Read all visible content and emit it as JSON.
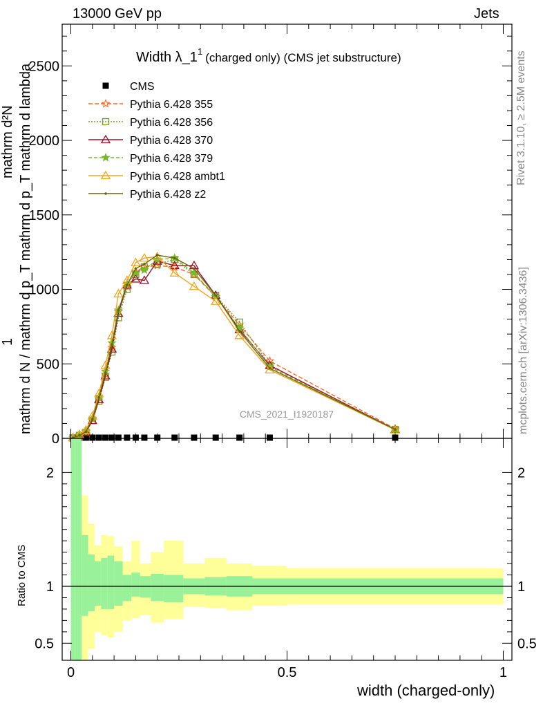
{
  "header": {
    "left": "13000 GeV pp",
    "right": "Jets"
  },
  "side_labels": {
    "rivet": "Rivet 3.1.10, ≥ 2.5M events",
    "mcplots": "mcplots.cern.ch [arXiv:1306.3436]"
  },
  "colors": {
    "p355": "#ff6622",
    "p356": "#7a9a1f",
    "p370": "#9b1128",
    "p379": "#77b82a",
    "ambt1": "#f2a51b",
    "z2": "#666612",
    "band_stat": "#99f299",
    "band_total": "#ffff99"
  },
  "chart_data": [
    {
      "type": "line",
      "title": "Width λ_1¹ (charged only) (CMS jet substructure)",
      "title_main": "Width λ_1",
      "title_sup": "1",
      "title_rest": "(charged only) (CMS jet substructure)",
      "watermark": "CMS_2021_I1920187",
      "ylabel_lines": [
        "1",
        "mathrm d N / mathrm d p_T mathrm d p_T mathrm d lambda",
        "mathrm d²N"
      ],
      "ylim": [
        0,
        2780
      ],
      "xlim": [
        -0.02,
        1.02
      ],
      "y_ticks": [
        0,
        500,
        1000,
        1500,
        2000,
        2500
      ],
      "y_tick_labels": [
        "0",
        "500",
        "1000",
        "1500",
        "2000",
        "2500"
      ],
      "legend_placement": "top-left",
      "x": [
        0.005,
        0.02,
        0.035,
        0.05,
        0.065,
        0.08,
        0.095,
        0.11,
        0.13,
        0.15,
        0.17,
        0.2,
        0.24,
        0.285,
        0.335,
        0.39,
        0.46,
        0.75
      ],
      "series": [
        {
          "name": "CMS",
          "key": "cms",
          "marker": "square",
          "values": [
            0,
            0,
            0,
            0,
            0,
            0,
            0,
            0,
            0,
            0,
            0,
            0,
            0,
            0,
            0,
            0,
            0,
            0
          ]
        },
        {
          "name": "Pythia 6.428 355",
          "key": "p355",
          "marker": "star-open",
          "dash": "6,3",
          "values": [
            4,
            20,
            45,
            130,
            270,
            430,
            610,
            850,
            1020,
            1120,
            1150,
            1160,
            1150,
            1100,
            950,
            760,
            520,
            65
          ]
        },
        {
          "name": "Pythia 6.428 356",
          "key": "p356",
          "marker": "square-open",
          "dash": "2,2",
          "values": [
            4,
            20,
            40,
            120,
            250,
            410,
            580,
            810,
            1000,
            1100,
            1150,
            1170,
            1200,
            1100,
            960,
            780,
            490,
            60
          ]
        },
        {
          "name": "Pythia 6.428 370",
          "key": "p370",
          "marker": "triangle-open",
          "dash": "",
          "values": [
            4,
            18,
            40,
            120,
            260,
            420,
            600,
            840,
            1030,
            1070,
            1060,
            1190,
            1160,
            1160,
            960,
            730,
            490,
            60
          ]
        },
        {
          "name": "Pythia 6.428 379",
          "key": "p379",
          "marker": "star",
          "dash": "5,3",
          "values": [
            4,
            22,
            48,
            135,
            280,
            450,
            640,
            860,
            1040,
            1110,
            1130,
            1200,
            1210,
            1110,
            950,
            740,
            480,
            58
          ]
        },
        {
          "name": "Pythia 6.428 ambt1",
          "key": "ambt1",
          "marker": "triangle-open",
          "dash": "",
          "values": [
            4,
            25,
            55,
            150,
            300,
            490,
            690,
            970,
            1060,
            1180,
            1210,
            1220,
            1110,
            1020,
            920,
            690,
            460,
            57
          ]
        },
        {
          "name": "Pythia 6.428 z2",
          "key": "z2",
          "marker": "dot",
          "dash": "",
          "values": [
            4,
            20,
            45,
            130,
            275,
            440,
            630,
            860,
            1030,
            1140,
            1170,
            1230,
            1210,
            1140,
            960,
            720,
            470,
            60
          ]
        }
      ]
    },
    {
      "type": "area",
      "ylabel": "Ratio to CMS",
      "xlabel": "width (charged-only)",
      "ylim": [
        0.35,
        2.3
      ],
      "xlim": [
        -0.02,
        1.02
      ],
      "y_ticks": [
        0.5,
        1,
        2
      ],
      "y_tick_labels": [
        "0.5",
        "1",
        "2"
      ],
      "x_ticks": [
        0,
        0.5,
        1
      ],
      "x_tick_labels": [
        "0",
        "0.5",
        "1"
      ],
      "bins": [
        {
          "x0": 0.0,
          "x1": 0.01,
          "stat": [
            0.1,
            2.5
          ],
          "total": [
            0.1,
            2.5
          ]
        },
        {
          "x0": 0.01,
          "x1": 0.025,
          "stat": [
            0.1,
            2.5
          ],
          "total": [
            0.1,
            2.5
          ]
        },
        {
          "x0": 0.025,
          "x1": 0.04,
          "stat": [
            0.74,
            1.45
          ],
          "total": [
            0.33,
            1.8
          ]
        },
        {
          "x0": 0.04,
          "x1": 0.055,
          "stat": [
            0.78,
            1.28
          ],
          "total": [
            0.45,
            1.55
          ]
        },
        {
          "x0": 0.055,
          "x1": 0.07,
          "stat": [
            0.83,
            1.22
          ],
          "total": [
            0.6,
            1.36
          ]
        },
        {
          "x0": 0.07,
          "x1": 0.085,
          "stat": [
            0.8,
            1.25
          ],
          "total": [
            0.57,
            1.45
          ]
        },
        {
          "x0": 0.085,
          "x1": 0.1,
          "stat": [
            0.8,
            1.27
          ],
          "total": [
            0.55,
            1.44
          ]
        },
        {
          "x0": 0.1,
          "x1": 0.12,
          "stat": [
            0.83,
            1.22
          ],
          "total": [
            0.6,
            1.35
          ]
        },
        {
          "x0": 0.12,
          "x1": 0.14,
          "stat": [
            0.87,
            1.1
          ],
          "total": [
            0.7,
            1.22
          ]
        },
        {
          "x0": 0.14,
          "x1": 0.16,
          "stat": [
            0.91,
            1.12
          ],
          "total": [
            0.72,
            1.4
          ]
        },
        {
          "x0": 0.16,
          "x1": 0.185,
          "stat": [
            0.9,
            1.09
          ],
          "total": [
            0.75,
            1.2
          ]
        },
        {
          "x0": 0.185,
          "x1": 0.215,
          "stat": [
            0.87,
            1.11
          ],
          "total": [
            0.68,
            1.3
          ]
        },
        {
          "x0": 0.215,
          "x1": 0.26,
          "stat": [
            0.86,
            1.1
          ],
          "total": [
            0.71,
            1.4
          ]
        },
        {
          "x0": 0.26,
          "x1": 0.31,
          "stat": [
            0.93,
            1.07
          ],
          "total": [
            0.82,
            1.2
          ]
        },
        {
          "x0": 0.31,
          "x1": 0.36,
          "stat": [
            0.92,
            1.08
          ],
          "total": [
            0.81,
            1.25
          ]
        },
        {
          "x0": 0.36,
          "x1": 0.42,
          "stat": [
            0.91,
            1.09
          ],
          "total": [
            0.79,
            1.2
          ]
        },
        {
          "x0": 0.42,
          "x1": 0.5,
          "stat": [
            0.93,
            1.07
          ],
          "total": [
            0.83,
            1.18
          ]
        },
        {
          "x0": 0.5,
          "x1": 1.0,
          "stat": [
            0.93,
            1.07
          ],
          "total": [
            0.84,
            1.16
          ]
        }
      ]
    }
  ]
}
